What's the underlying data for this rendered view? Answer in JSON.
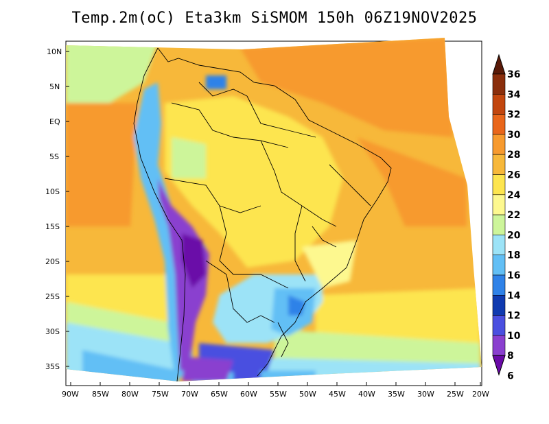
{
  "title": "Temp.2m(oC) Eta3km SiSMOM 150h 06Z19NOV2025",
  "map": {
    "variable": "2 m temperature",
    "unit": "oC",
    "region": "South America",
    "lat_labels": [
      "10N",
      "5N",
      "EQ",
      "5S",
      "10S",
      "15S",
      "20S",
      "25S",
      "30S",
      "35S"
    ],
    "lon_labels": [
      "90W",
      "85W",
      "80W",
      "75W",
      "70W",
      "65W",
      "60W",
      "55W",
      "50W",
      "45W",
      "40W",
      "35W",
      "30W",
      "25W",
      "20W"
    ]
  },
  "colorbar": {
    "labels": [
      "36",
      "34",
      "32",
      "30",
      "28",
      "26",
      "24",
      "22",
      "20",
      "18",
      "16",
      "14",
      "12",
      "10",
      "8",
      "6"
    ],
    "colors": [
      "#5a1a08",
      "#8a2e0c",
      "#c2460e",
      "#e9661a",
      "#f79a2e",
      "#f7b83a",
      "#fde54f",
      "#fdf88f",
      "#cdf59a",
      "#9ce3f7",
      "#62bff5",
      "#2f82e8",
      "#0f3ab0",
      "#4a4fe0",
      "#8a3fcf",
      "#6a0aa8"
    ]
  }
}
